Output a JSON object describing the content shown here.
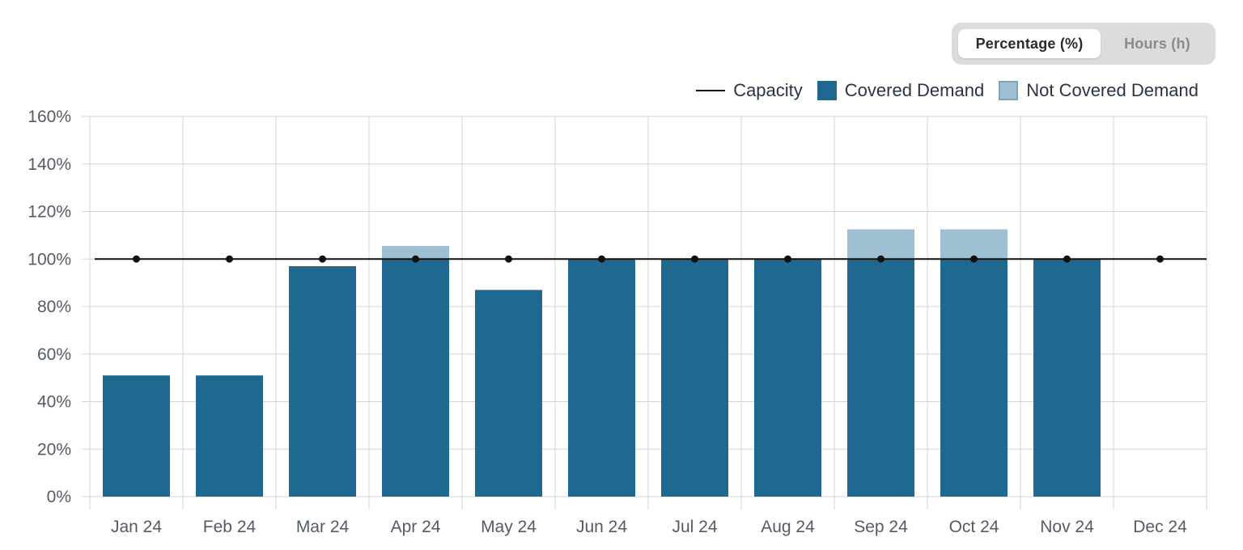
{
  "toggle": {
    "options": [
      "Percentage (%)",
      "Hours (h)"
    ],
    "selected": "Percentage (%)"
  },
  "legend": {
    "capacity": "Capacity",
    "covered": "Covered Demand",
    "not_covered": "Not Covered Demand"
  },
  "colors": {
    "covered": "#1f6890",
    "not_covered": "#9fbfd3",
    "capacity": "#111111",
    "grid": "#d6d6d6"
  },
  "chart_data": {
    "type": "bar",
    "stacked": true,
    "categories": [
      "Jan 24",
      "Feb 24",
      "Mar 24",
      "Apr 24",
      "May 24",
      "Jun 24",
      "Jul 24",
      "Aug 24",
      "Sep 24",
      "Oct 24",
      "Nov 24",
      "Dec 24"
    ],
    "series": [
      {
        "name": "Covered Demand",
        "values": [
          51,
          51,
          97,
          100,
          87,
          100,
          100,
          100,
          100,
          100,
          100,
          0
        ]
      },
      {
        "name": "Not Covered Demand",
        "values": [
          0,
          0,
          0,
          5.5,
          0,
          0,
          0,
          0,
          12.5,
          12.5,
          0,
          0
        ]
      },
      {
        "name": "Capacity",
        "kind": "line",
        "values": [
          100,
          100,
          100,
          100,
          100,
          100,
          100,
          100,
          100,
          100,
          100,
          100
        ]
      }
    ],
    "y_ticks": [
      "0%",
      "20%",
      "40%",
      "60%",
      "80%",
      "100%",
      "120%",
      "140%",
      "160%"
    ],
    "ylim": [
      0,
      160
    ],
    "grid": true,
    "legend_position": "top-right"
  }
}
